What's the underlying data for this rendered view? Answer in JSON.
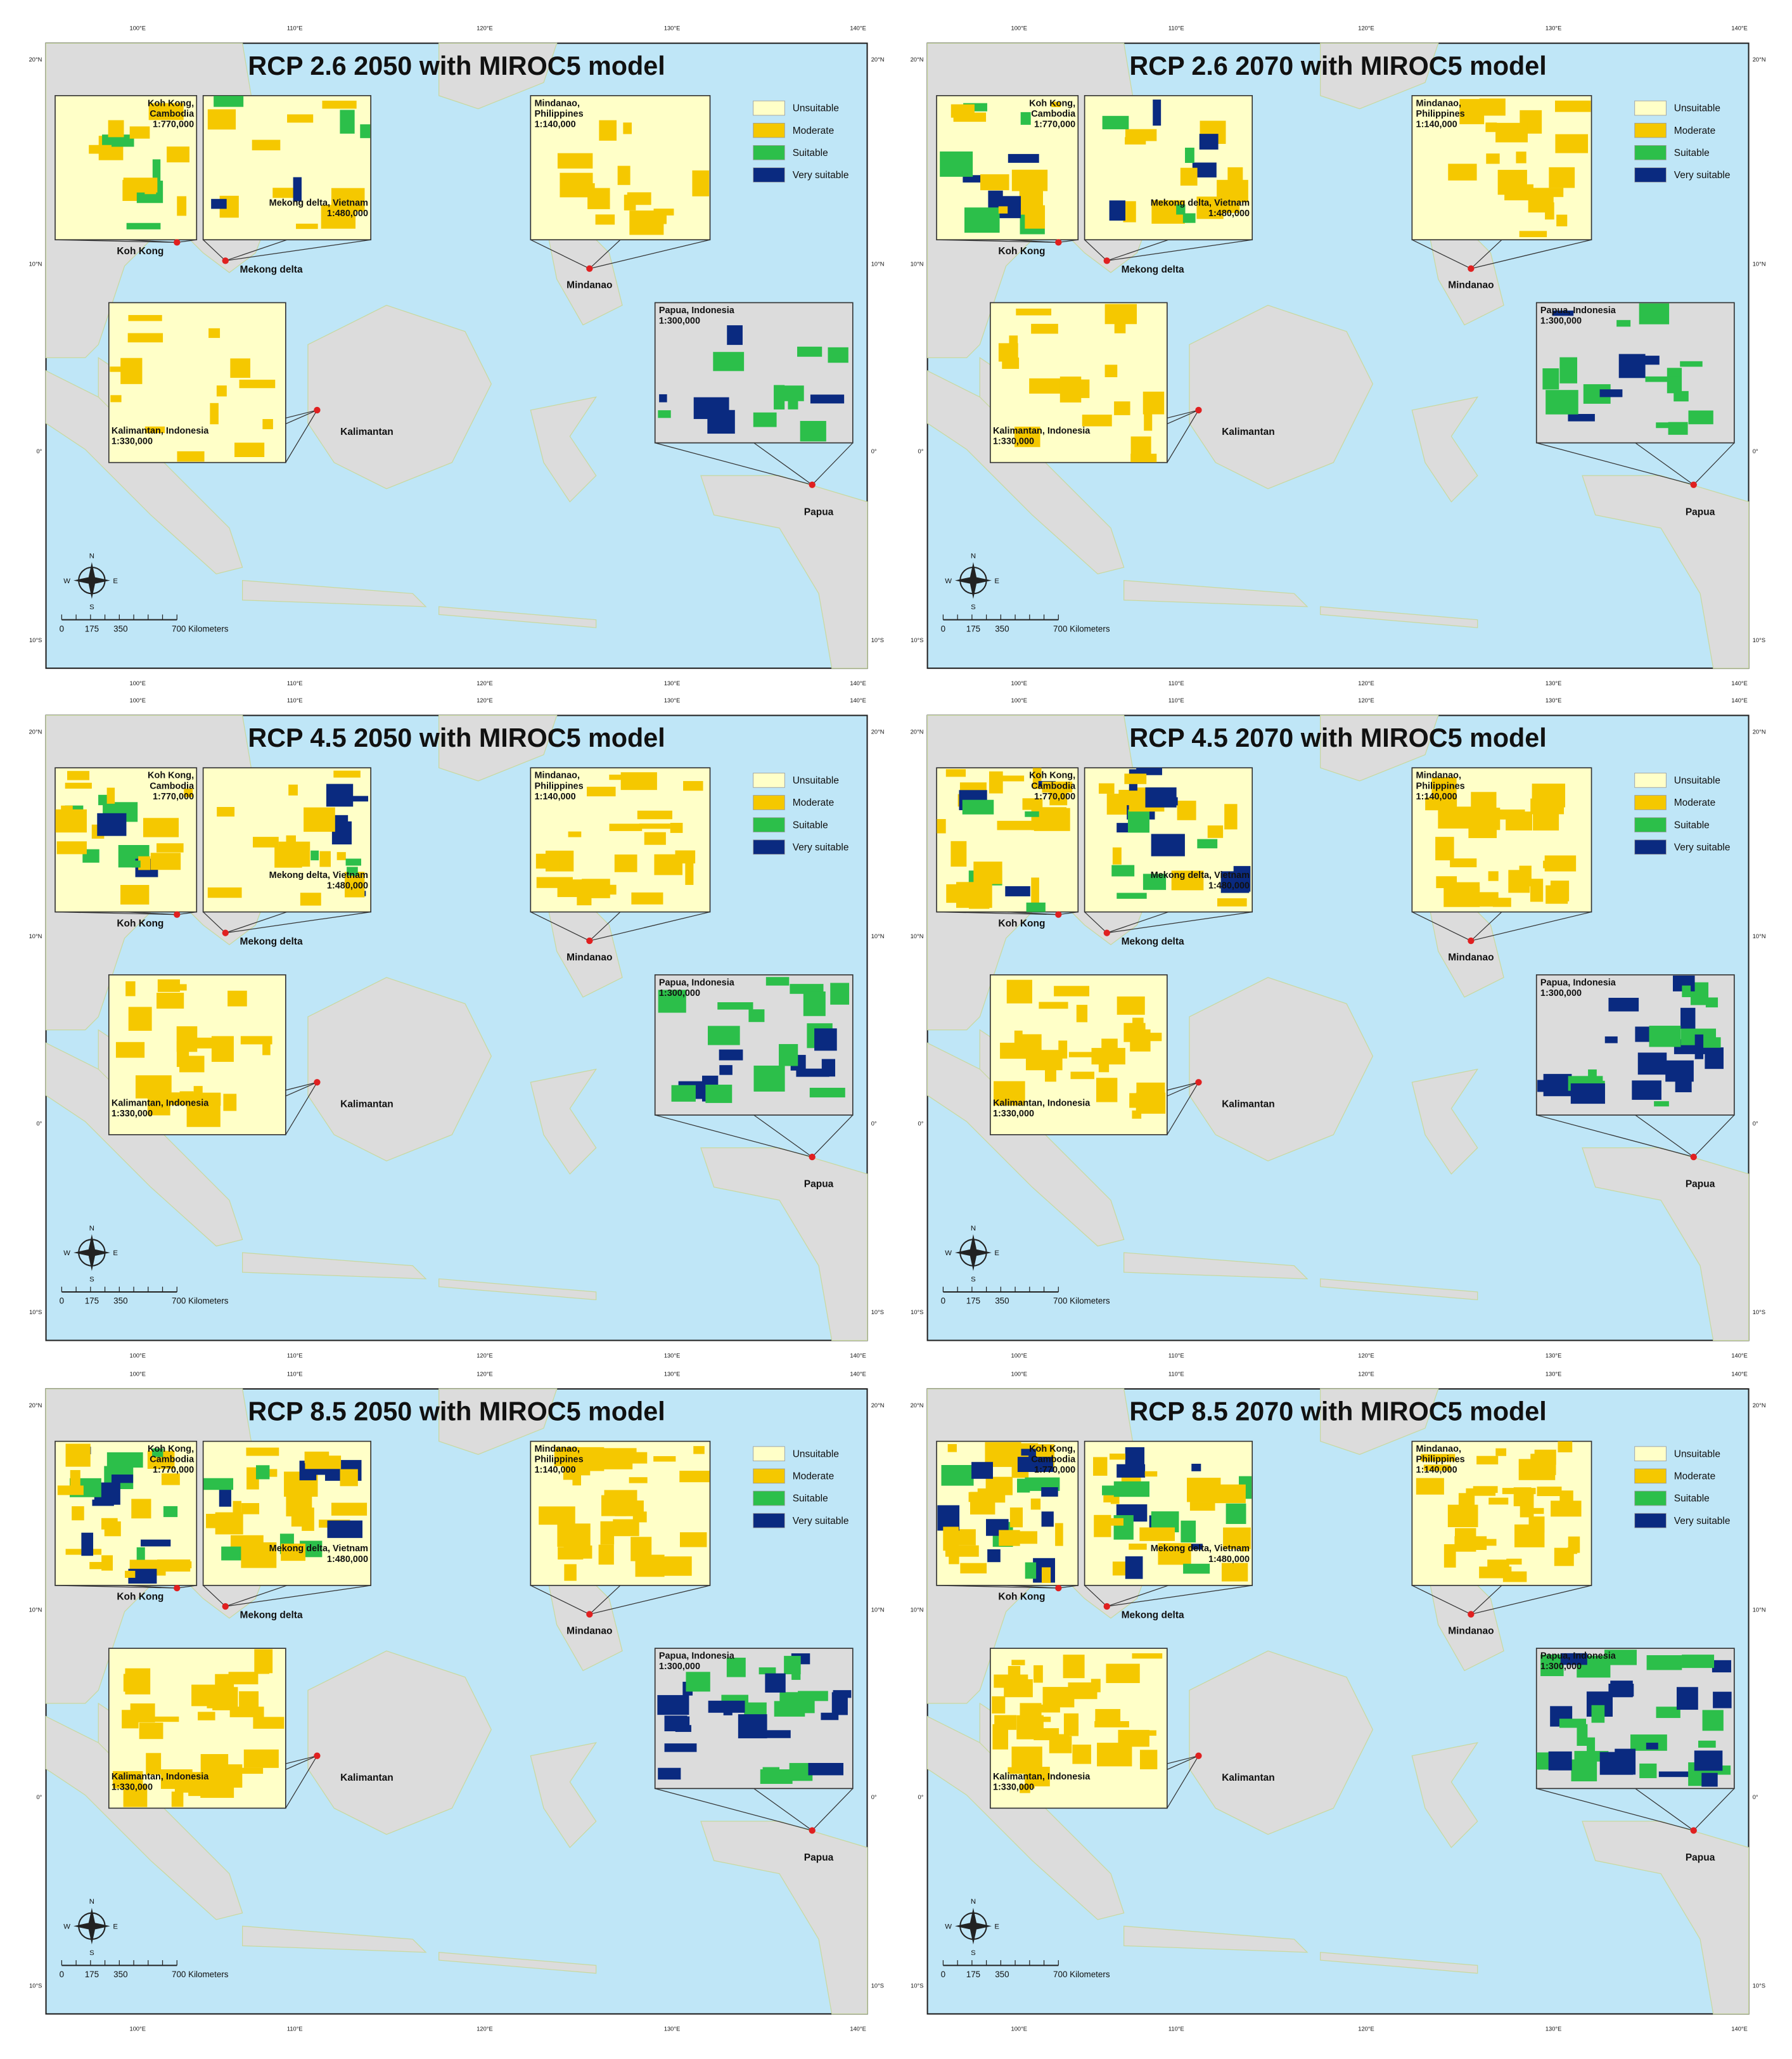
{
  "panels": [
    {
      "title": "RCP 2.6 2050 with MIROC5 model"
    },
    {
      "title": "RCP 2.6 2070 with MIROC5 model"
    },
    {
      "title": "RCP 4.5 2050 with MIROC5 model"
    },
    {
      "title": "RCP 4.5 2070 with MIROC5 model"
    },
    {
      "title": "RCP 8.5 2050 with MIROC5 model"
    },
    {
      "title": "RCP 8.5 2070 with MIROC5 model"
    }
  ],
  "legend": [
    {
      "label": "Unsuitable",
      "color": "#ffffc8"
    },
    {
      "label": "Moderate",
      "color": "#f5c800"
    },
    {
      "label": "Suitable",
      "color": "#2cbf4a"
    },
    {
      "label": "Very suitable",
      "color": "#0a2a80"
    }
  ],
  "insets": [
    {
      "lines": [
        "Koh Kong,",
        "Cambodia",
        "1:770,000"
      ]
    },
    {
      "lines": [
        "Mekong delta, Vietnam",
        "1:480,000"
      ]
    },
    {
      "lines": [
        "Mindanao,",
        "Philippines",
        "1:140,000"
      ]
    },
    {
      "lines": [
        "Kalimantan, Indonesia",
        "1:330,000"
      ]
    },
    {
      "lines": [
        "Papua, Indonesia",
        "1:300,000"
      ]
    }
  ],
  "places": [
    "Koh Kong",
    "Mekong delta",
    "Mindanao",
    "Kalimantan",
    "Papua"
  ],
  "compass": [
    "N",
    "E",
    "S",
    "W"
  ],
  "scale_bar": [
    "0",
    "175",
    "350",
    "700 Kilometers"
  ],
  "longitude_labels": [
    "100°E",
    "110°E",
    "120°E",
    "130°E",
    "140°E"
  ],
  "latitude_labels": [
    "20°N",
    "10°N",
    "0°",
    "10°S"
  ]
}
